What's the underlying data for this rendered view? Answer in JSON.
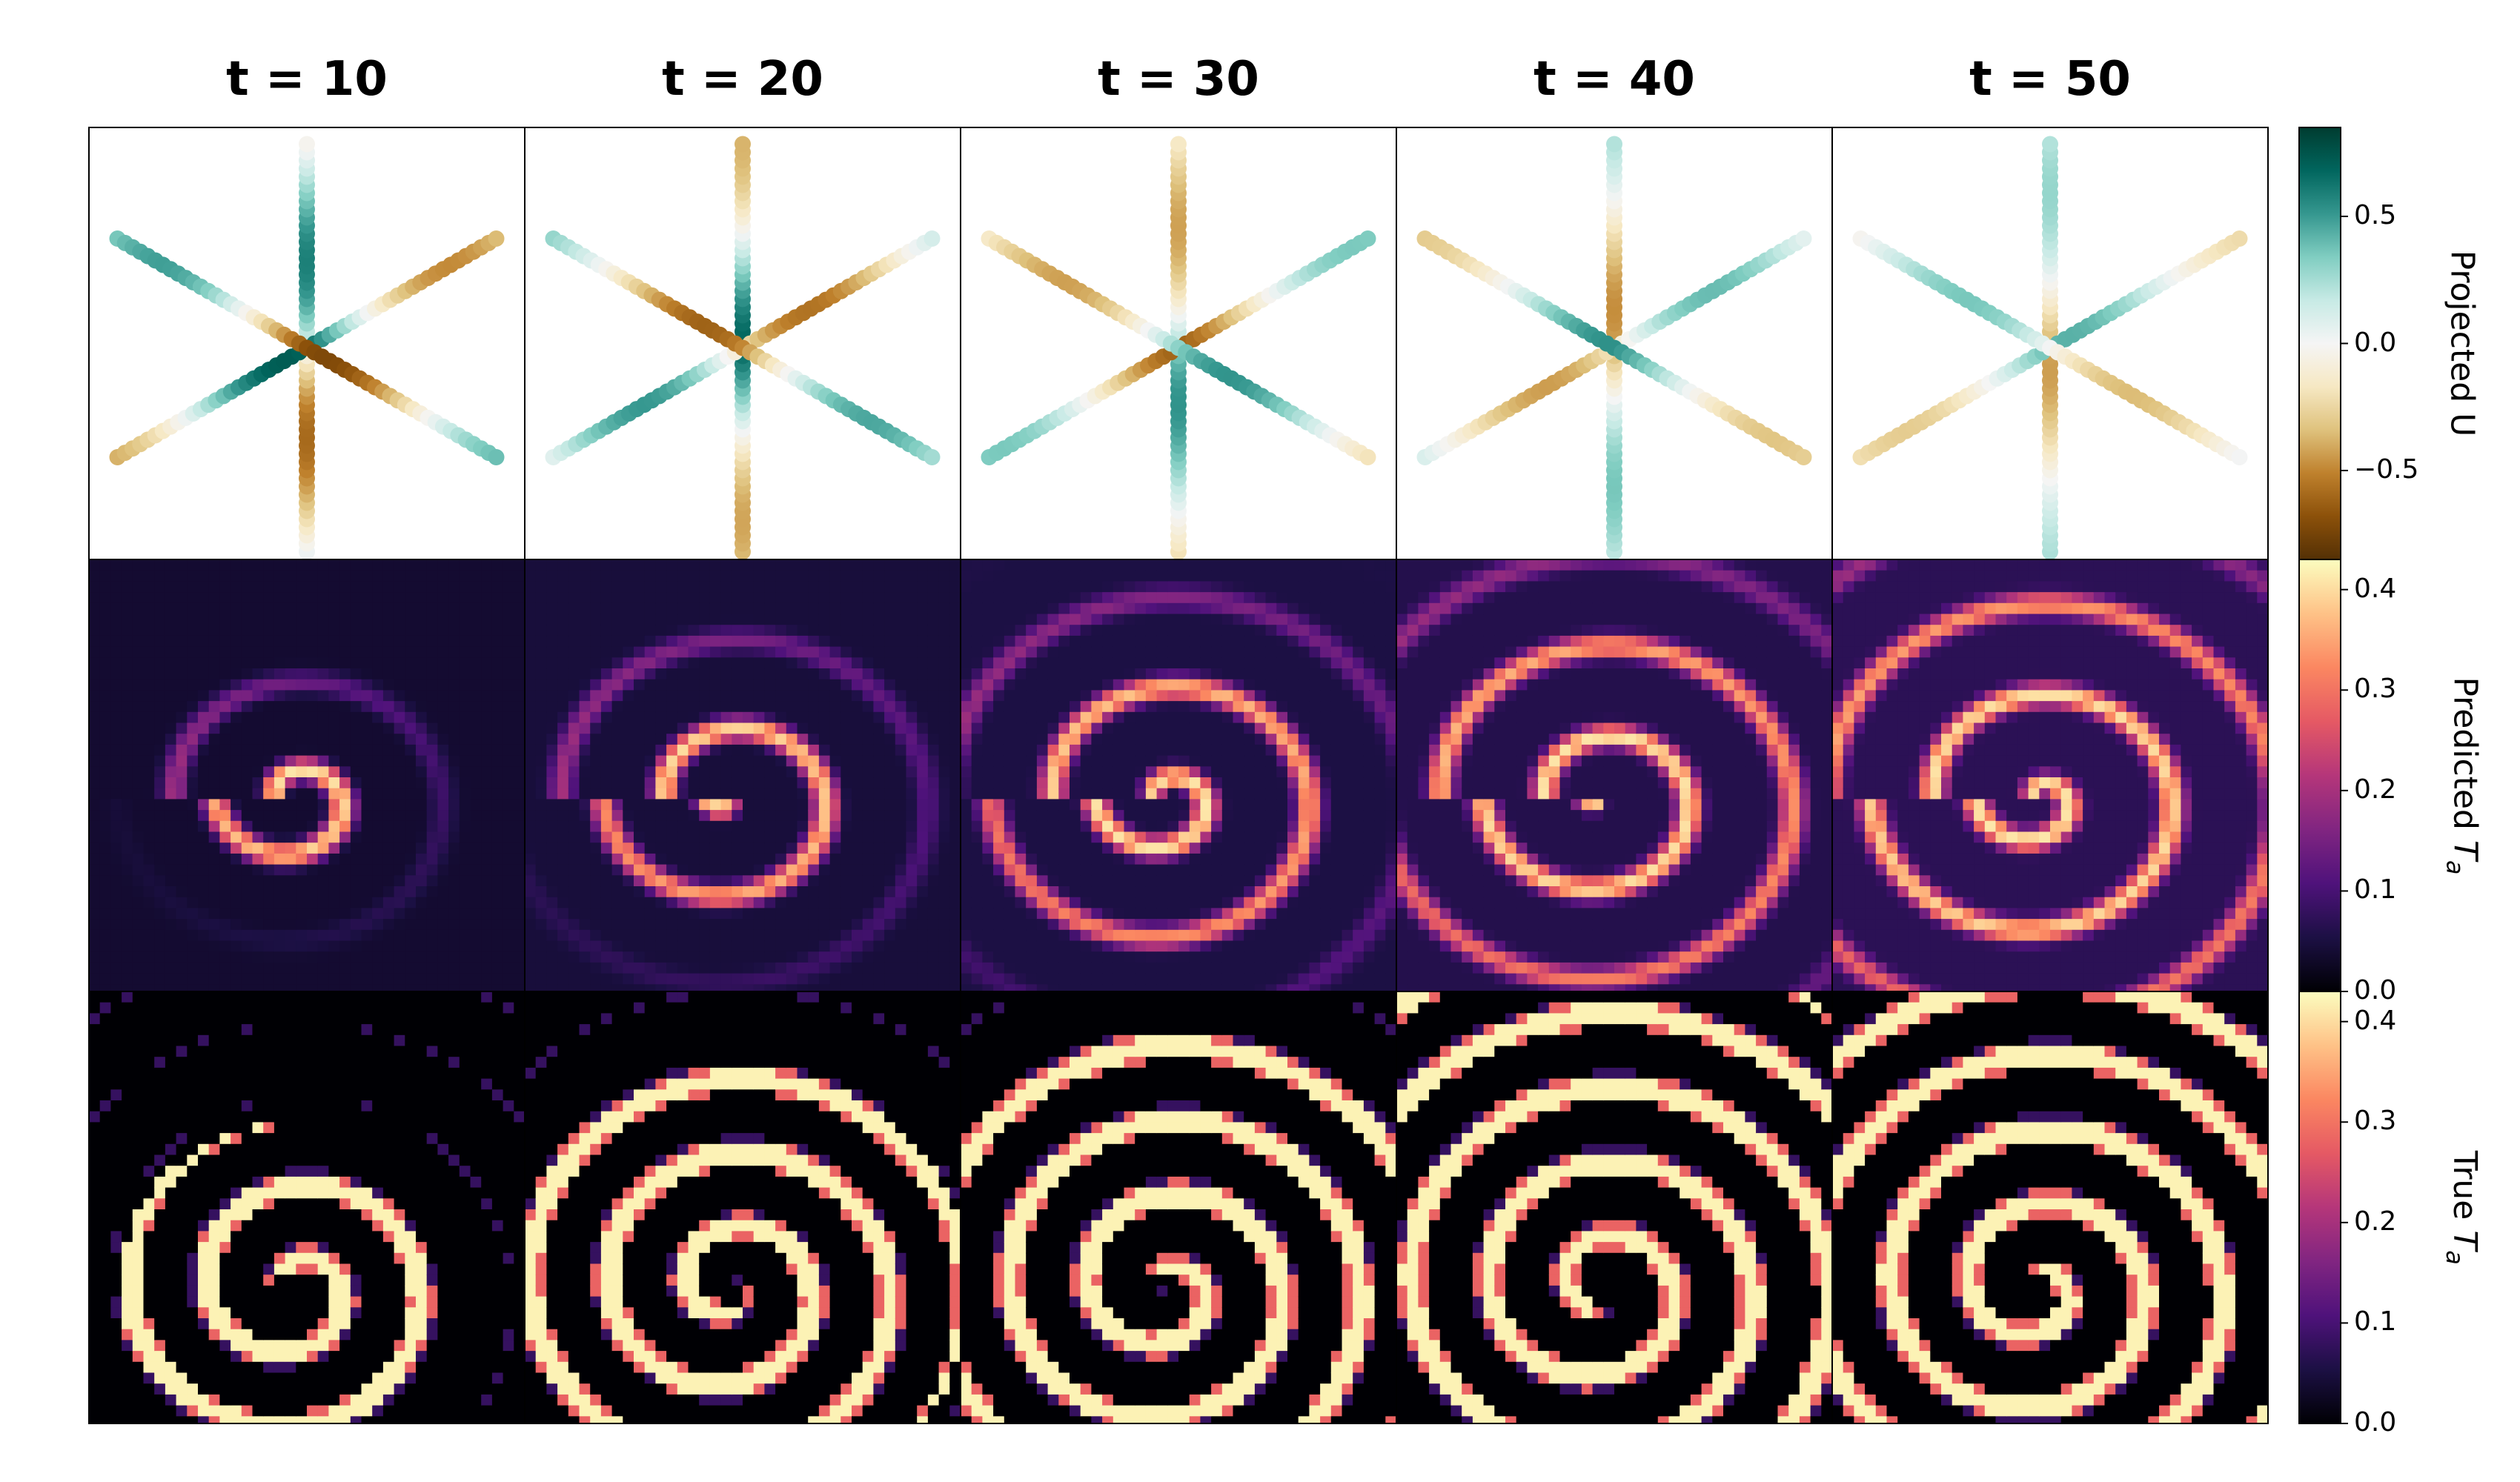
{
  "chart_data": {
    "type": "heatmap",
    "columns": [
      "t = 10",
      "t = 20",
      "t = 30",
      "t = 40",
      "t = 50"
    ],
    "rows": [
      {
        "name": "projected_u",
        "colorbar_label": "Projected U",
        "colormap": "BrBG",
        "range": [
          -0.85,
          0.85
        ],
        "ticks": [
          {
            "value": 0.5,
            "label": "0.5"
          },
          {
            "value": 0.0,
            "label": "0.0"
          },
          {
            "value": -0.5,
            "label": "−0.5"
          }
        ],
        "description": "hexagonal probe markers along 6 radial lines"
      },
      {
        "name": "predicted_ta",
        "colorbar_label": "Predicted ",
        "colorbar_math": "T",
        "colorbar_sub": "a",
        "colormap": "magma",
        "range": [
          0.0,
          0.43
        ],
        "ticks": [
          {
            "value": 0.4,
            "label": "0.4"
          },
          {
            "value": 0.3,
            "label": "0.3"
          },
          {
            "value": 0.2,
            "label": "0.2"
          },
          {
            "value": 0.1,
            "label": "0.1"
          },
          {
            "value": 0.0,
            "label": "0.0"
          }
        ]
      },
      {
        "name": "true_ta",
        "colorbar_label": "True ",
        "colorbar_math": "T",
        "colorbar_sub": "a",
        "colormap": "magma",
        "range": [
          0.0,
          0.43
        ],
        "ticks": [
          {
            "value": 0.4,
            "label": "0.4"
          },
          {
            "value": 0.3,
            "label": "0.3"
          },
          {
            "value": 0.2,
            "label": "0.2"
          },
          {
            "value": 0.1,
            "label": "0.1"
          },
          {
            "value": 0.0,
            "label": "0.0"
          }
        ]
      }
    ],
    "colors": {
      "brbg": [
        "#543005",
        "#8c510a",
        "#bf812d",
        "#dfc27d",
        "#f6e8c3",
        "#f5f5f5",
        "#c7eae5",
        "#80cdc1",
        "#35978f",
        "#01665e",
        "#003c30"
      ],
      "magma": [
        "#000004",
        "#1c1044",
        "#4f127b",
        "#812581",
        "#b5367a",
        "#e55964",
        "#fb8761",
        "#fec287",
        "#fcfdbf"
      ]
    }
  }
}
